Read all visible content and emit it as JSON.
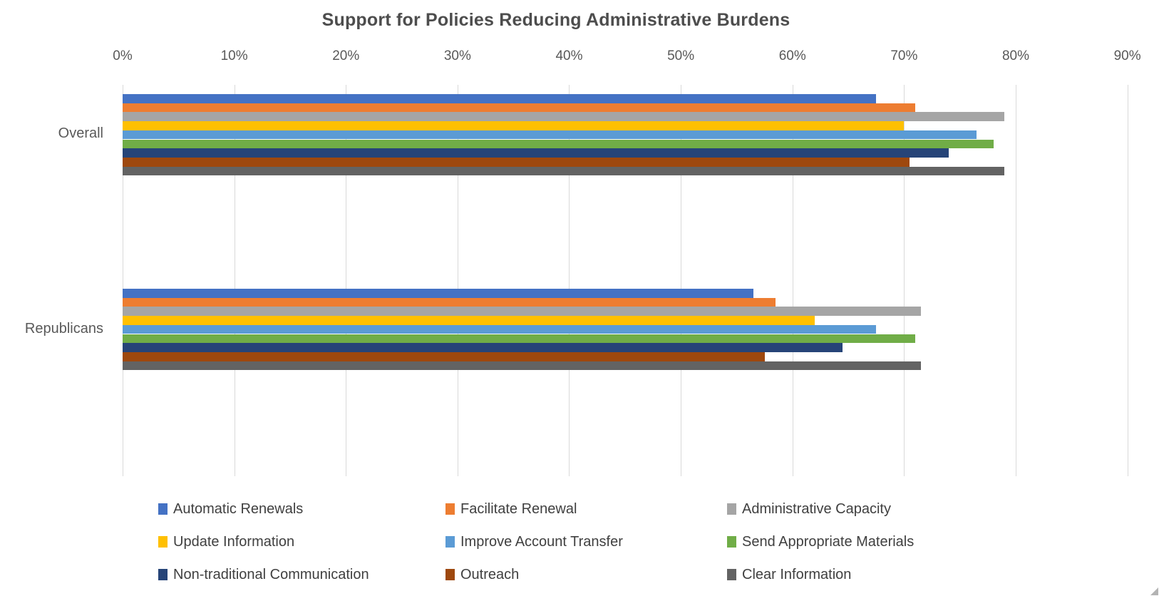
{
  "chart_data": {
    "type": "bar",
    "orientation": "horizontal",
    "title": "Support for Policies Reducing Administrative Burdens",
    "categories": [
      "Overall",
      "Republicans"
    ],
    "series": [
      {
        "name": "Automatic Renewals",
        "color": "#4472C4",
        "values": [
          67.5,
          56.5
        ]
      },
      {
        "name": "Facilitate Renewal",
        "color": "#ED7D31",
        "values": [
          71.0,
          58.5
        ]
      },
      {
        "name": "Administrative Capacity",
        "color": "#A5A5A5",
        "values": [
          79.0,
          71.5
        ]
      },
      {
        "name": "Update Information",
        "color": "#FFC000",
        "values": [
          70.0,
          62.0
        ]
      },
      {
        "name": "Improve Account Transfer",
        "color": "#5B9BD5",
        "values": [
          76.5,
          67.5
        ]
      },
      {
        "name": "Send Appropriate Materials",
        "color": "#70AD47",
        "values": [
          78.0,
          71.0
        ]
      },
      {
        "name": "Non-traditional Communication",
        "color": "#264478",
        "values": [
          74.0,
          64.5
        ]
      },
      {
        "name": "Outreach",
        "color": "#9E480E",
        "values": [
          70.5,
          57.5
        ]
      },
      {
        "name": "Clear Information",
        "color": "#636363",
        "values": [
          79.0,
          71.5
        ]
      }
    ],
    "x_axis": {
      "position": "top",
      "min": 0,
      "max": 90,
      "tick_step": 10,
      "ticks": [
        "0%",
        "10%",
        "20%",
        "30%",
        "40%",
        "50%",
        "60%",
        "70%",
        "80%",
        "90%"
      ]
    },
    "grid": true,
    "gridline_color": "#d9d9d9",
    "legend_position": "bottom",
    "legend_rows": [
      [
        "Automatic Renewals",
        "Facilitate Renewal",
        "Administrative Capacity"
      ],
      [
        "Update Information",
        "Improve Account Transfer",
        "Send Appropriate Materials"
      ],
      [
        "Non-traditional Communication",
        "Outreach",
        "Clear Information"
      ]
    ]
  }
}
